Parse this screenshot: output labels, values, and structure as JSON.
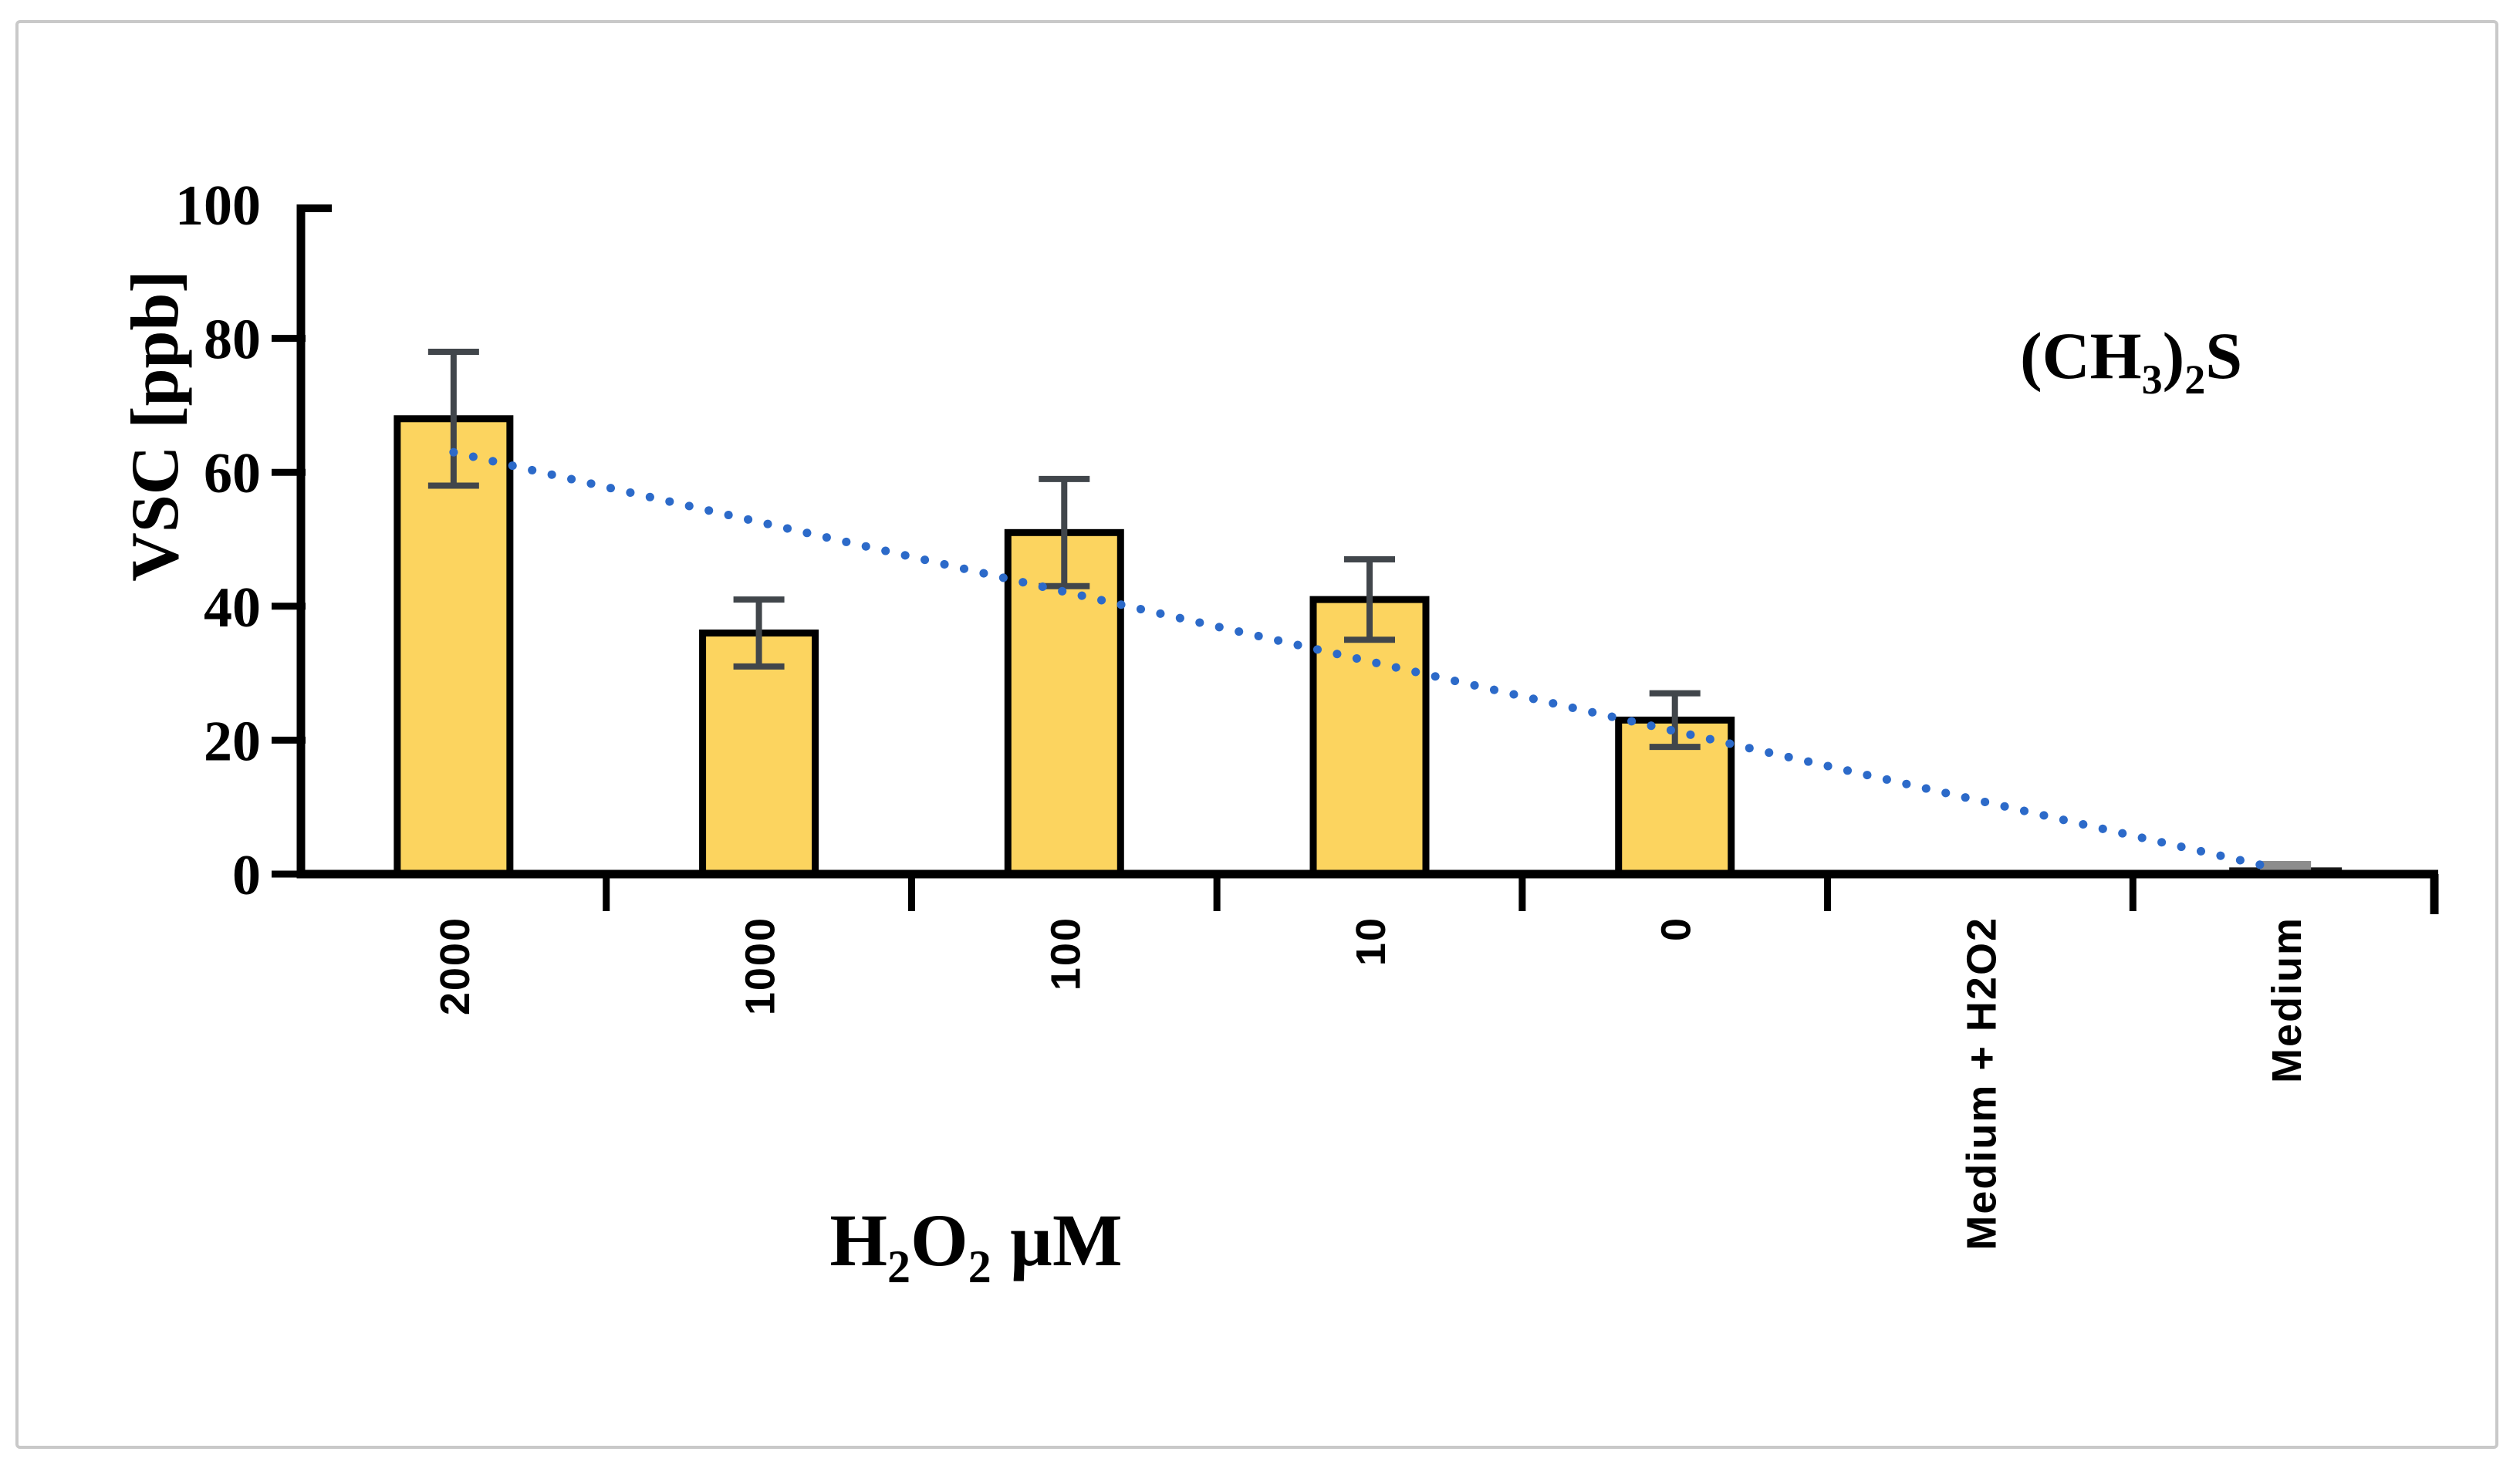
{
  "page": {
    "background": "#FFFFFF",
    "frame_color": "#C9C9C9"
  },
  "chart_data": {
    "type": "bar",
    "title": "",
    "ylabel": "VSC [ppb]",
    "xlabel": "H2O2 µM",
    "xlabel_parts": [
      {
        "t": "H"
      },
      {
        "t": "2",
        "sub": true
      },
      {
        "t": "O"
      },
      {
        "t": "2",
        "sub": true
      },
      {
        "t": " µM"
      }
    ],
    "annotation": "(CH3)2S",
    "annotation_parts": [
      {
        "t": "(CH"
      },
      {
        "t": "3",
        "sub": true
      },
      {
        "t": ")"
      },
      {
        "t": "2",
        "sub": true
      },
      {
        "t": "S"
      }
    ],
    "categories": [
      "2000",
      "1000",
      "100",
      "10",
      "0",
      "Medium + H2O2",
      "Medium"
    ],
    "values": [
      68,
      36,
      51,
      41,
      23,
      0,
      1
    ],
    "errors": [
      10,
      5,
      8,
      6,
      4,
      0,
      0.5
    ],
    "bar_colors": [
      "#FCD45F",
      "#FCD45F",
      "#FCD45F",
      "#FCD45F",
      "#FCD45F",
      "#FCD45F",
      "#171717"
    ],
    "error_colors": [
      "#41464B",
      "#41464B",
      "#41464B",
      "#41464B",
      "#41464B",
      "#41464B",
      "#8C8C8C"
    ],
    "ylim": [
      0,
      100
    ],
    "yticks": [
      0,
      20,
      40,
      60,
      80,
      100
    ],
    "grid": false,
    "legend": false,
    "axis_color": "#000000",
    "trendline": {
      "style": "dotted",
      "color": "#2C6AC9",
      "start_category_index": 0,
      "start_value": 63,
      "end_category_index": 6,
      "end_value": 1
    }
  }
}
